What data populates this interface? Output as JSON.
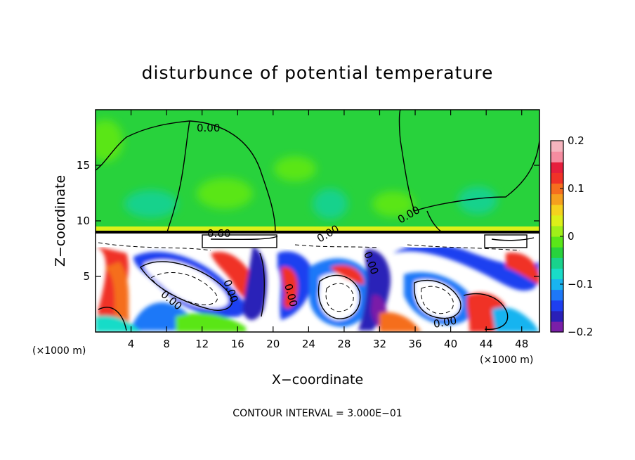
{
  "chart_data": {
    "type": "heatmap",
    "title": "disturbunce of potential temperature",
    "xlabel": "X−coordinate",
    "ylabel": "Z−coordinate",
    "x_unit_left": "(×1000 m)",
    "x_unit_right": "(×1000 m)",
    "footer": "CONTOUR INTERVAL = 3.000E−01",
    "xlim": [
      0,
      50
    ],
    "ylim": [
      0,
      20
    ],
    "xticks": [
      "4",
      "8",
      "12",
      "16",
      "20",
      "24",
      "28",
      "32",
      "36",
      "40",
      "44",
      "48"
    ],
    "xtick_values": [
      4,
      8,
      12,
      16,
      20,
      24,
      28,
      32,
      36,
      40,
      44,
      48
    ],
    "yticks": [
      "5",
      "10",
      "15"
    ],
    "ytick_values": [
      5,
      10,
      15
    ],
    "colorbar": {
      "range": [
        -0.2,
        0.2
      ],
      "tick_labels": [
        "0.2",
        "0.1",
        "0",
        "−0.1",
        "−0.2"
      ],
      "tick_values": [
        0.2,
        0.1,
        0,
        -0.1,
        -0.2
      ],
      "colors": [
        "#7a1fa8",
        "#2a20b8",
        "#1e3ff0",
        "#1e78f8",
        "#19b4f0",
        "#19dcc8",
        "#19d28c",
        "#28d23c",
        "#5ae619",
        "#a0f019",
        "#dcf019",
        "#f5d21e",
        "#f5a01e",
        "#f56e1e",
        "#f03228",
        "#e61e3c",
        "#f58ca0",
        "#f5b4be"
      ]
    },
    "contour_labels": [
      "0.00",
      "0.00",
      "0.60",
      "0.00",
      "0.00",
      "0.00",
      "0.00",
      "0.00",
      "0.00"
    ]
  }
}
